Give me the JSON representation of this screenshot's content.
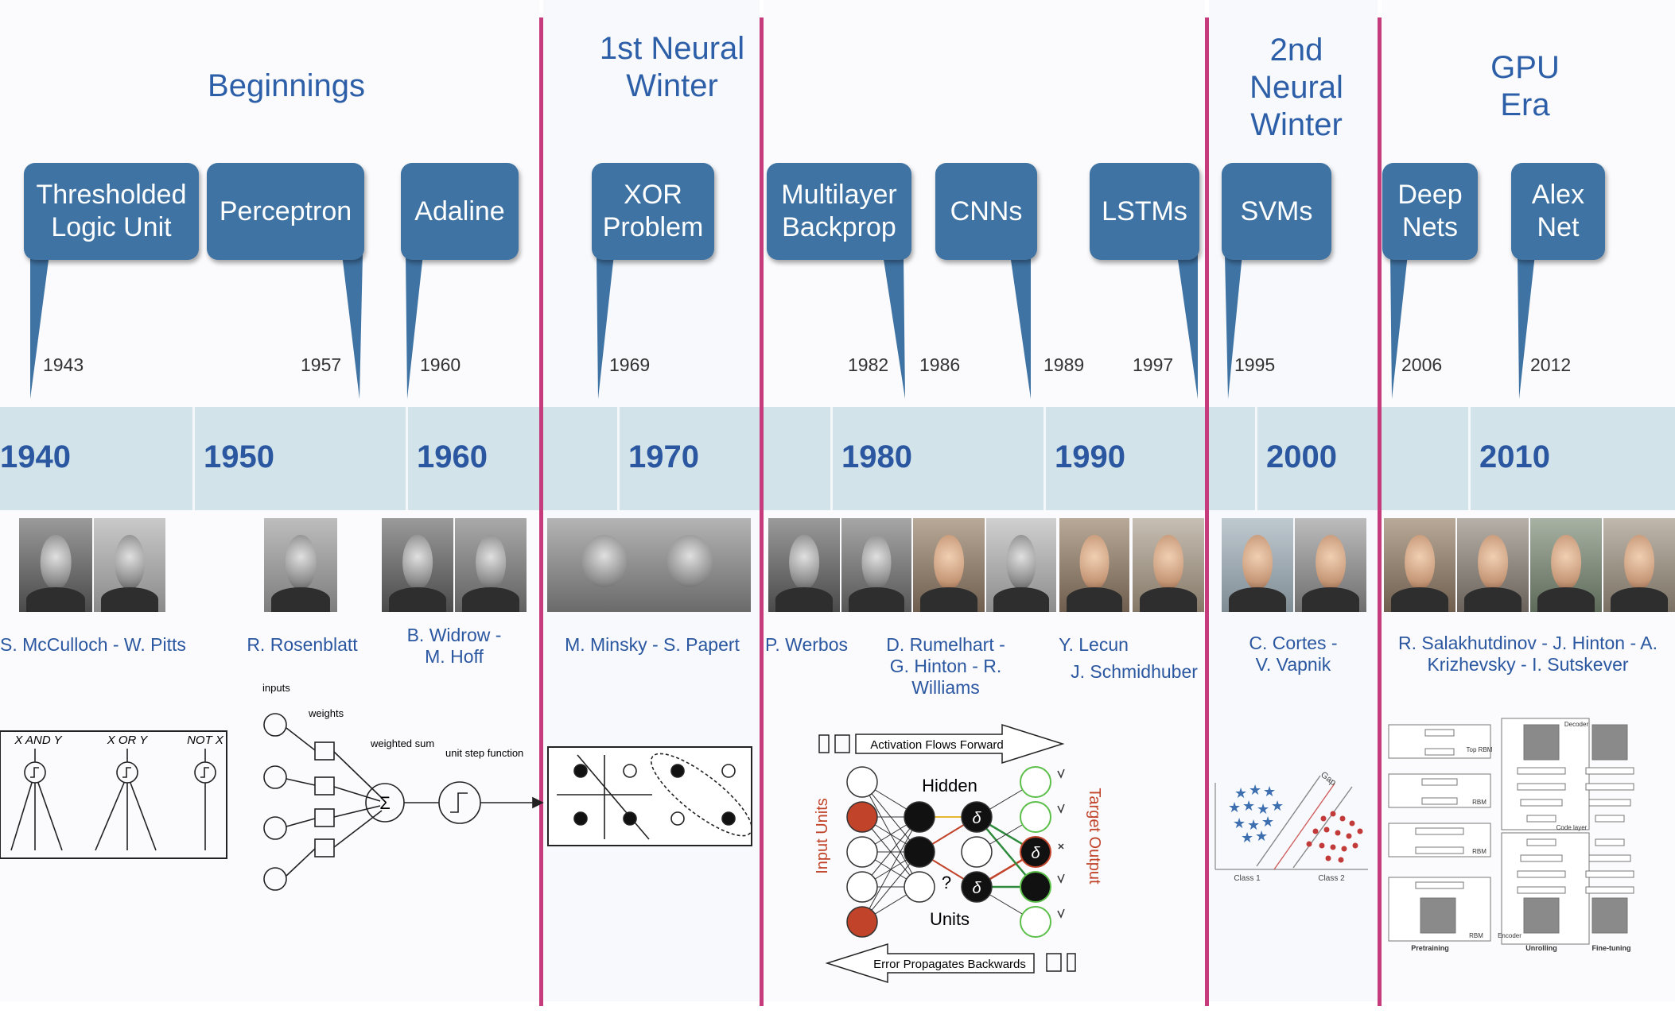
{
  "eras": [
    {
      "title": "Beginnings"
    },
    {
      "title": "1st Neural Winter"
    },
    {
      "title": "2nd Neural Winter"
    },
    {
      "title": "GPU Era"
    }
  ],
  "callouts": [
    {
      "label": "Thresholded Logic Unit",
      "year": "1943"
    },
    {
      "label": "Perceptron",
      "year": "1957"
    },
    {
      "label": "Adaline",
      "year": "1960"
    },
    {
      "label": "XOR Problem",
      "year": "1969"
    },
    {
      "label": "Multilayer Backprop",
      "year": "1982"
    },
    {
      "label": "CNNs",
      "year": "1989"
    },
    {
      "label": "LSTMs",
      "year": "1997"
    },
    {
      "label": "SVMs",
      "year": "1995"
    },
    {
      "label": "Deep Nets",
      "year": "2006"
    },
    {
      "label": "Alex Net",
      "year": "2012"
    }
  ],
  "extra_year": "1986",
  "decades": [
    "1940",
    "1950",
    "1960",
    "1970",
    "1980",
    "1990",
    "2000",
    "2010"
  ],
  "people": [
    "S. McCulloch - W. Pitts",
    "R. Rosenblatt",
    "B. Widrow - M. Hoff",
    "M. Minsky - S. Papert",
    "P. Werbos",
    "D. Rumelhart - G. Hinton - R. Williams",
    "Y. Lecun",
    "J. Schmidhuber",
    "C. Cortes - V. Vapnik",
    "R. Salakhutdinov - J. Hinton - A. Krizhevsky - I. Sutskever"
  ],
  "logic_units": {
    "and": "X AND Y",
    "or": "X OR Y",
    "not": "NOT X"
  },
  "perceptron": {
    "inputs": "inputs",
    "weights": "weights",
    "weighted_sum": "weighted sum",
    "step": "unit step function",
    "sum_symbol": "Σ"
  },
  "backprop": {
    "forward": "Activation Flows Forward",
    "backward": "Error Propagates Backwards",
    "hidden": "Hidden",
    "units": "Units",
    "input_units": "Input Units",
    "target_output": "Target Output",
    "delta": "δ",
    "question": "?"
  },
  "svm": {
    "gap": "Gap",
    "class1": "Class 1",
    "class2": "Class 2"
  },
  "dbn": {
    "decoder": "Decoder",
    "encoder": "Encoder",
    "code_layer": "Code layer",
    "pretraining": "Pretraining",
    "unrolling": "Unrolling",
    "finetuning": "Fine-tuning",
    "rbm": "RBM",
    "top_rbm": "Top RBM"
  },
  "colors": {
    "divider": "#c63b7c",
    "callout": "#3f73a3",
    "band": "#d2e3ea",
    "text_blue": "#2a57a0",
    "backprop_red": "#c0432a"
  }
}
